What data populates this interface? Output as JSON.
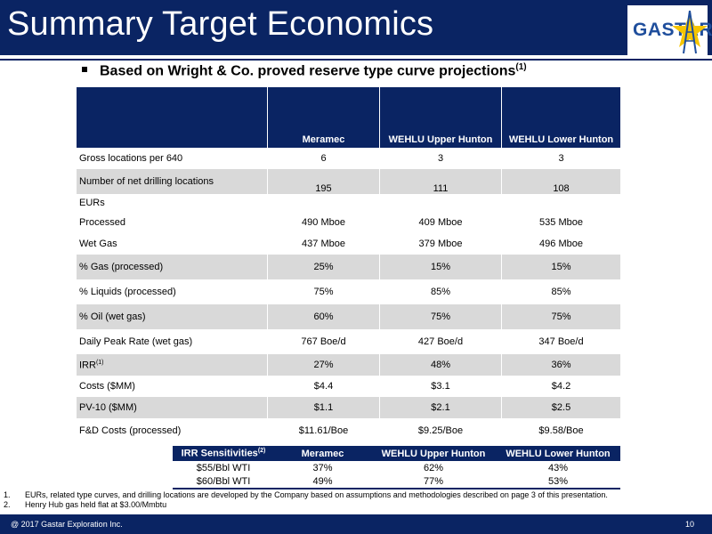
{
  "header": {
    "title": "Summary Target Economics",
    "logo_text": "GASTAR",
    "star_color": "#f6c500",
    "bg_color": "#0a2463"
  },
  "bullet": {
    "text": "Based on Wright & Co. proved reserve type curve projections",
    "note": "(1)"
  },
  "main_table": {
    "columns": [
      "Meramec",
      "WEHLU Upper Hunton",
      "WEHLU Lower Hunton"
    ],
    "rows": [
      {
        "label": "Gross locations per 640",
        "values": [
          "6",
          "3",
          "3"
        ]
      },
      {
        "label": "Number of net drilling locations",
        "values": [
          "195",
          "111",
          "108"
        ]
      },
      {
        "label": "EURs",
        "values": [
          "",
          "",
          ""
        ]
      },
      {
        "label": "Processed",
        "values": [
          "490 Mboe",
          "409 Mboe",
          "535 Mboe"
        ]
      },
      {
        "label": "Wet Gas",
        "values": [
          "437 Mboe",
          "379 Mboe",
          "496 Mboe"
        ]
      },
      {
        "label": "% Gas (processed)",
        "values": [
          "25%",
          "15%",
          "15%"
        ]
      },
      {
        "label": "% Liquids (processed)",
        "values": [
          "75%",
          "85%",
          "85%"
        ]
      },
      {
        "label": "% Oil (wet gas)",
        "values": [
          "60%",
          "75%",
          "75%"
        ]
      },
      {
        "label": "Daily Peak Rate (wet gas)",
        "values": [
          "767 Boe/d",
          "427 Boe/d",
          "347 Boe/d"
        ]
      },
      {
        "label": "IRR",
        "note": "(1)",
        "values": [
          "27%",
          "48%",
          "36%"
        ]
      },
      {
        "label": "Costs ($MM)",
        "values": [
          "$4.4",
          "$3.1",
          "$4.2"
        ]
      },
      {
        "label": "PV-10 ($MM)",
        "values": [
          "$1.1",
          "$2.1",
          "$2.5"
        ]
      },
      {
        "label": "F&D Costs (processed)",
        "values": [
          "$11.61/Boe",
          "$9.25/Boe",
          "$9.58/Boe"
        ]
      }
    ]
  },
  "irr_table": {
    "title": "IRR Sensitivities",
    "note": "(2)",
    "columns": [
      "Meramec",
      "WEHLU Upper Hunton",
      "WEHLU Lower Hunton"
    ],
    "rows": [
      {
        "label": "$55/Bbl WTI",
        "values": [
          "37%",
          "62%",
          "43%"
        ]
      },
      {
        "label": "$60/Bbl WTI",
        "values": [
          "49%",
          "77%",
          "53%"
        ]
      }
    ]
  },
  "footnotes": [
    {
      "num": "1.",
      "text": "EURs, related type curves, and drilling locations are developed by the Company based on assumptions and methodologies described on page 3 of this presentation."
    },
    {
      "num": "2.",
      "text": "Henry Hub gas held flat at $3.00/Mmbtu"
    }
  ],
  "footer": {
    "copyright": "@ 2017 Gastar Exploration Inc.",
    "page": "10"
  }
}
